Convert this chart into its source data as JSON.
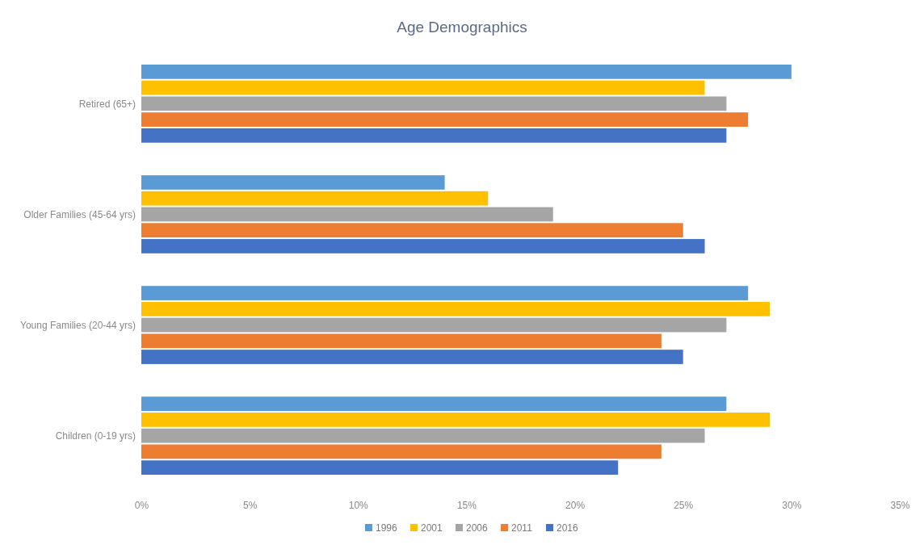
{
  "chart_data": {
    "type": "bar",
    "orientation": "horizontal",
    "title": "Age Demographics",
    "categories": [
      "Retired (65+)",
      "Older Families (45-64 yrs)",
      "Young Families (20-44 yrs)",
      "Children (0-19 yrs)"
    ],
    "series": [
      {
        "name": "1996",
        "color": "#5b9bd5",
        "values": [
          30,
          14,
          28,
          27
        ]
      },
      {
        "name": "2001",
        "color": "#ffc000",
        "values": [
          26,
          16,
          29,
          29
        ]
      },
      {
        "name": "2006",
        "color": "#a5a5a5",
        "values": [
          27,
          19,
          27,
          26
        ]
      },
      {
        "name": "2011",
        "color": "#ed7d31",
        "values": [
          28,
          25,
          24,
          24
        ]
      },
      {
        "name": "2016",
        "color": "#4472c4",
        "values": [
          27,
          26,
          25,
          22
        ]
      }
    ],
    "xlim": [
      0,
      35
    ],
    "xticks": [
      {
        "value": 0,
        "label": "0%"
      },
      {
        "value": 5,
        "label": "5%"
      },
      {
        "value": 10,
        "label": "10%"
      },
      {
        "value": 15,
        "label": "15%"
      },
      {
        "value": 20,
        "label": "20%"
      },
      {
        "value": 25,
        "label": "25%"
      },
      {
        "value": 30,
        "label": "30%"
      },
      {
        "value": 35,
        "label": "35%"
      }
    ],
    "legend": "bottom",
    "grid": false
  }
}
